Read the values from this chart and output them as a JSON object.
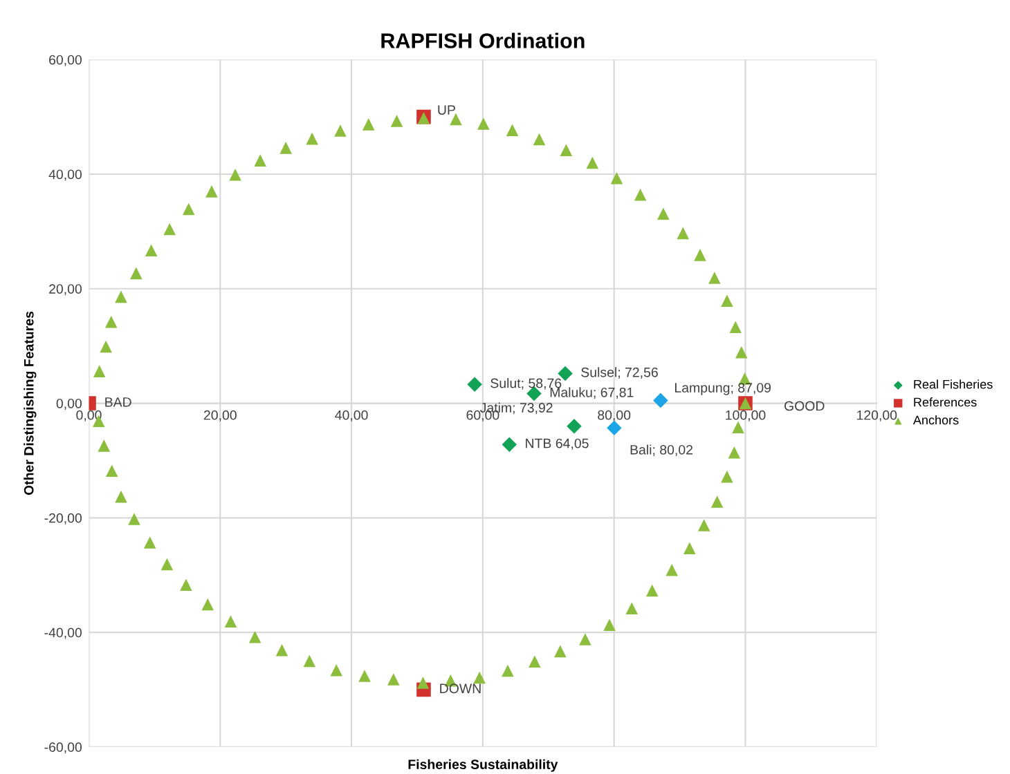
{
  "chart_data": {
    "type": "scatter",
    "title": "RAPFISH Ordination",
    "xlabel": "Fisheries Sustainability",
    "ylabel": "Other Distingishing Features",
    "xlim": [
      0,
      120
    ],
    "ylim": [
      -60,
      60
    ],
    "xticks": [
      {
        "value": 0,
        "label": "0,00"
      },
      {
        "value": 20,
        "label": "20,00"
      },
      {
        "value": 40,
        "label": "40,00"
      },
      {
        "value": 60,
        "label": "60,00"
      },
      {
        "value": 80,
        "label": "80,00"
      },
      {
        "value": 100,
        "label": "100,00"
      },
      {
        "value": 120,
        "label": "120,00"
      }
    ],
    "yticks": [
      {
        "value": -60,
        "label": "-60,00"
      },
      {
        "value": -40,
        "label": "-40,00"
      },
      {
        "value": -20,
        "label": "-20,00"
      },
      {
        "value": 0,
        "label": "0,00"
      },
      {
        "value": 20,
        "label": "20,00"
      },
      {
        "value": 40,
        "label": "40,00"
      },
      {
        "value": 60,
        "label": "60,00"
      }
    ],
    "grid": true,
    "legend": "right",
    "annotations": [
      {
        "text": "Sulut; 58,76",
        "x": 58.76,
        "y": 3.3
      },
      {
        "text": "Sulsel; 72,56",
        "x": 72.56,
        "y": 5.2
      },
      {
        "text": "Maluku; 67,81",
        "x": 67.81,
        "y": 1.7
      },
      {
        "text": "Jatim; 73,92",
        "x": 73.92,
        "y": -4.0
      },
      {
        "text": "NTB 64,05",
        "x": 64.05,
        "y": -7.2
      },
      {
        "text": "Lampung; 87,09",
        "x": 87.09,
        "y": 0.5
      },
      {
        "text": "Bali; 80,02",
        "x": 80.02,
        "y": -4.3
      },
      {
        "text": "BAD",
        "x": 0,
        "y": 0
      },
      {
        "text": "GOOD",
        "x": 100,
        "y": 0
      },
      {
        "text": "UP",
        "x": 51,
        "y": 50
      },
      {
        "text": "DOWN",
        "x": 51,
        "y": -50
      }
    ],
    "series": [
      {
        "name": "Real Fisheries",
        "marker": "diamond",
        "color": "#13a356",
        "colors": [
          "#13a356",
          "#13a356",
          "#13a356",
          "#13a356",
          "#13a356",
          "#1ba4e6",
          "#1ba4e6"
        ],
        "x": [
          58.76,
          72.56,
          67.81,
          73.92,
          64.05,
          87.09,
          80.02
        ],
        "values": [
          3.3,
          5.2,
          1.7,
          -4.0,
          -7.2,
          0.5,
          -4.3
        ]
      },
      {
        "name": "References",
        "marker": "square",
        "color": "#d2322d",
        "x": [
          0,
          100,
          51,
          51
        ],
        "values": [
          0,
          0,
          50,
          -50
        ]
      },
      {
        "name": "Anchors",
        "marker": "triangle",
        "color": "#8cbd3c",
        "x": [
          51.0,
          55.9,
          60.1,
          64.5,
          68.6,
          72.7,
          76.7,
          80.4,
          84.0,
          87.5,
          90.5,
          93.1,
          95.3,
          97.2,
          98.5,
          99.4,
          99.9,
          100.0,
          98.9,
          98.3,
          97.2,
          95.7,
          93.7,
          91.5,
          88.8,
          85.8,
          82.7,
          79.3,
          75.6,
          71.8,
          67.9,
          63.8,
          59.5,
          55.1,
          50.9,
          46.4,
          42.0,
          37.7,
          33.6,
          29.4,
          25.3,
          21.6,
          18.1,
          14.8,
          11.9,
          9.3,
          6.9,
          4.9,
          3.5,
          2.3,
          1.5,
          1.6,
          2.6,
          3.4,
          4.9,
          7.2,
          9.5,
          12.3,
          15.2,
          18.7,
          22.3,
          26.1,
          30.0,
          34.0,
          38.3,
          42.6,
          46.9
        ],
        "values": [
          49.8,
          49.6,
          48.8,
          47.7,
          46.1,
          44.2,
          42.0,
          39.3,
          36.4,
          33.1,
          29.7,
          25.9,
          21.9,
          17.9,
          13.3,
          8.9,
          4.3,
          0.0,
          -4.2,
          -8.6,
          -12.8,
          -17.2,
          -21.3,
          -25.3,
          -29.1,
          -32.7,
          -35.8,
          -38.7,
          -41.2,
          -43.3,
          -45.1,
          -46.7,
          -47.9,
          -48.4,
          -48.8,
          -48.2,
          -47.6,
          -46.6,
          -45.0,
          -43.1,
          -40.8,
          -38.1,
          -35.1,
          -31.7,
          -28.1,
          -24.3,
          -20.2,
          -16.3,
          -11.8,
          -7.4,
          -3.1,
          5.6,
          9.9,
          14.2,
          18.6,
          22.7,
          26.7,
          30.4,
          33.9,
          37.0,
          39.9,
          42.4,
          44.6,
          46.2,
          47.6,
          48.7,
          49.3
        ]
      }
    ]
  }
}
